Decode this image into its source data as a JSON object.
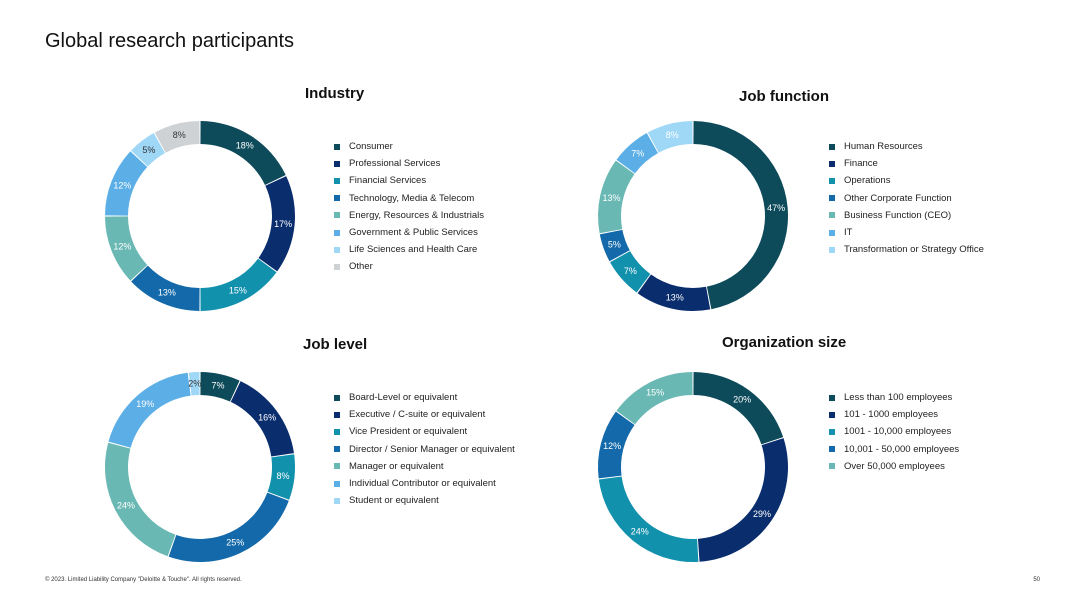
{
  "page": {
    "title": "Global research participants",
    "footer": "© 2023. Limited Liability Company \"Deloitte & Touche\". All rights reserved.",
    "page_number": "50"
  },
  "chart_data": [
    {
      "type": "pie",
      "title": "Industry",
      "categories": [
        "Consumer",
        "Professional Services",
        "Financial Services",
        "Technology, Media & Telecom",
        "Energy, Resources & Industrials",
        "Government & Public Services",
        "Life Sciences and Health Care",
        "Other"
      ],
      "values": [
        18,
        17,
        15,
        13,
        12,
        12,
        5,
        8
      ],
      "labels": [
        "18%",
        "17%",
        "15%",
        "13%",
        "12%",
        "12%",
        "5%",
        "8%"
      ],
      "colors": [
        "#0d4a5a",
        "#0a2d6e",
        "#1291ad",
        "#1369a9",
        "#6ab8b4",
        "#5baee6",
        "#9fd7f7",
        "#cfd2d4"
      ],
      "label_colors": [
        "#ffffff",
        "#ffffff",
        "#ffffff",
        "#ffffff",
        "#ffffff",
        "#ffffff",
        "#333333",
        "#333333"
      ],
      "donut": true
    },
    {
      "type": "pie",
      "title": "Job function",
      "categories": [
        "Human Resources",
        "Finance",
        "Operations",
        "Other Corporate Function",
        "Business Function (CEO)",
        "IT",
        "Transformation or Strategy Office"
      ],
      "values": [
        47,
        13,
        7,
        5,
        13,
        7,
        8
      ],
      "labels": [
        "47%",
        "13%",
        "7%",
        "5%",
        "13%",
        "7%",
        "8%"
      ],
      "colors": [
        "#0d4a5a",
        "#0a2d6e",
        "#1291ad",
        "#1369a9",
        "#6ab8b4",
        "#5baee6",
        "#9fd7f7"
      ],
      "label_colors": [
        "#ffffff",
        "#ffffff",
        "#ffffff",
        "#ffffff",
        "#ffffff",
        "#ffffff",
        "#ffffff"
      ],
      "donut": true
    },
    {
      "type": "pie",
      "title": "Job level",
      "categories": [
        "Board-Level or equivalent",
        "Executive / C-suite or equivalent",
        "Vice President or equivalent",
        "Director / Senior Manager or equivalent",
        "Manager or equivalent",
        "Individual Contributor or equivalent",
        "Student or equivalent"
      ],
      "values": [
        7,
        16,
        8,
        25,
        24,
        19,
        2
      ],
      "labels": [
        "7%",
        "16%",
        "8%",
        "25%",
        "24%",
        "19%",
        "2%"
      ],
      "colors": [
        "#0d4a5a",
        "#0a2d6e",
        "#1291ad",
        "#1369a9",
        "#6ab8b4",
        "#5baee6",
        "#9fd7f7"
      ],
      "label_colors": [
        "#ffffff",
        "#ffffff",
        "#ffffff",
        "#ffffff",
        "#ffffff",
        "#ffffff",
        "#333333"
      ],
      "donut": true
    },
    {
      "type": "pie",
      "title": "Organization size",
      "categories": [
        "Less than 100 employees",
        "101 - 1000 employees",
        "1001 - 10,000 employees",
        "10,001 - 50,000 employees",
        "Over 50,000 employees"
      ],
      "values": [
        20,
        29,
        24,
        12,
        15
      ],
      "labels": [
        "20%",
        "29%",
        "24%",
        "12%",
        "15%"
      ],
      "colors": [
        "#0d4a5a",
        "#0a2d6e",
        "#1291ad",
        "#1369a9",
        "#6ab8b4"
      ],
      "label_colors": [
        "#ffffff",
        "#ffffff",
        "#ffffff",
        "#ffffff",
        "#ffffff"
      ],
      "donut": true
    }
  ]
}
